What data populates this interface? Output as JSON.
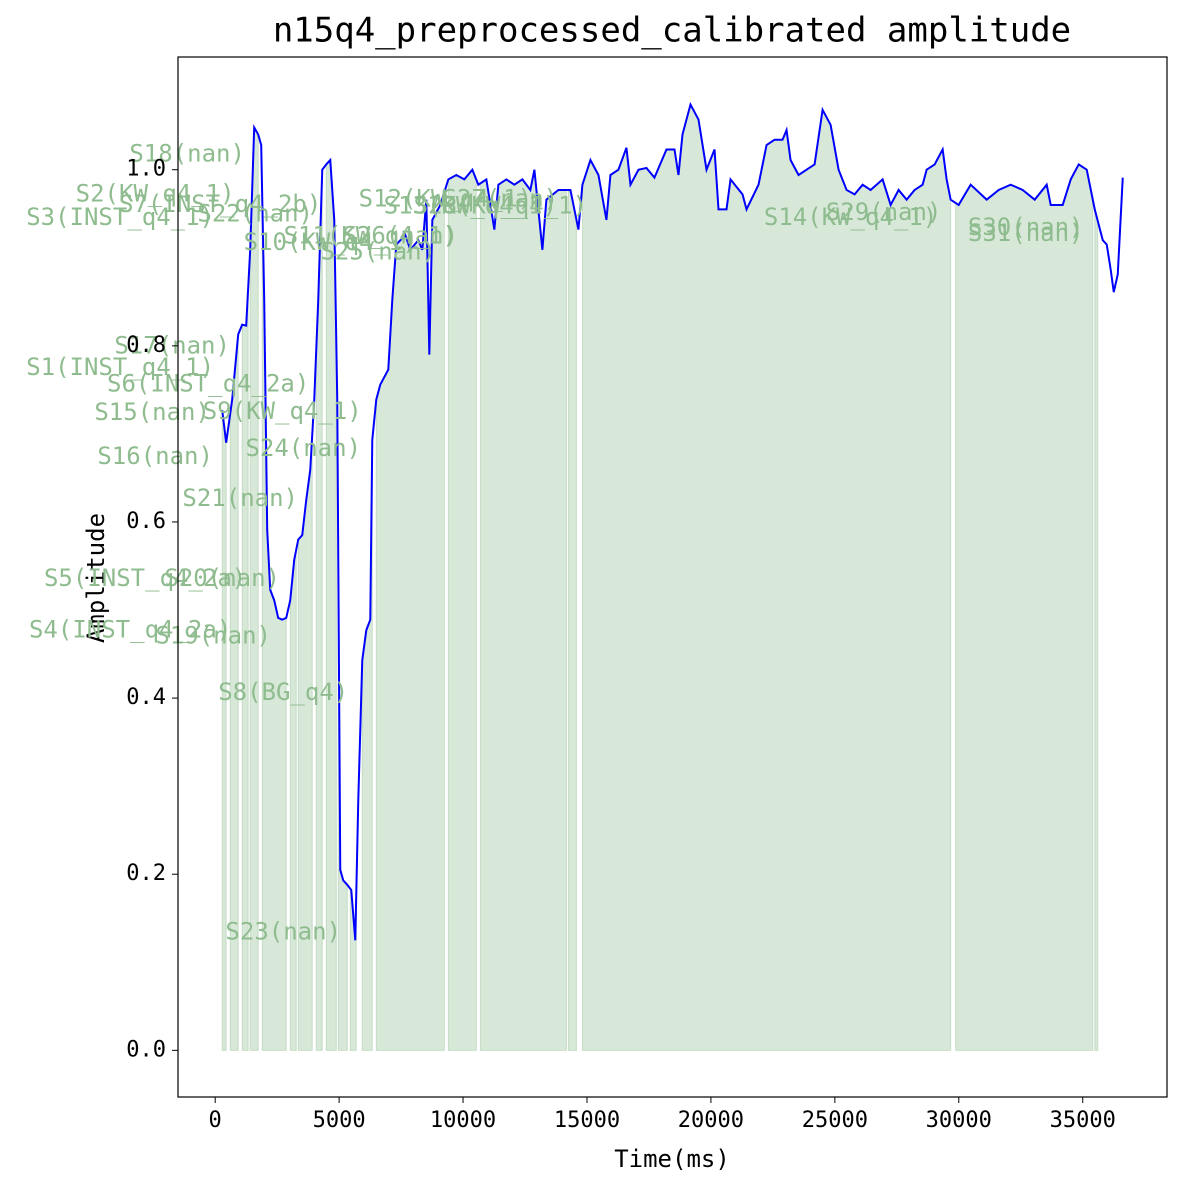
{
  "chart_data": {
    "type": "line",
    "title": "n15q4_preprocessed_calibrated amplitude",
    "x_label": "Time(ms)",
    "y_label": "Amplitude",
    "color": "blue",
    "x": [
      283,
      444,
      686,
      929,
      1090,
      1251,
      1413,
      1574,
      1736,
      1857,
      1978,
      2099,
      2220,
      2382,
      2543,
      2705,
      2866,
      3028,
      3189,
      3351,
      3512,
      3674,
      3835,
      3997,
      4158,
      4320,
      4481,
      4643,
      4804,
      4925,
      5046,
      5167,
      5329,
      5490,
      5652,
      5773,
      5934,
      6096,
      6257,
      6338,
      6499,
      6661,
      6984,
      7145,
      7307,
      7670,
      7872,
      8195,
      8357,
      8518,
      8639,
      8760,
      9083,
      9406,
      9729,
      10052,
      10375,
      10617,
      10940,
      11263,
      11425,
      11747,
      12070,
      12394,
      12716,
      12878,
      13201,
      13362,
      13847,
      14332,
      14654,
      14816,
      15139,
      15462,
      15785,
      15946,
      16269,
      16592,
      16754,
      17077,
      17399,
      17722,
      18207,
      18530,
      18691,
      18853,
      19176,
      19499,
      19822,
      20145,
      20306,
      20629,
      20791,
      21275,
      21437,
      21921,
      22244,
      22567,
      22890,
      23051,
      23213,
      23536,
      23859,
      24182,
      24505,
      24828,
      25151,
      25474,
      25796,
      26119,
      26442,
      26927,
      27250,
      27573,
      27896,
      28218,
      28541,
      28703,
      29026,
      29349,
      29510,
      29672,
      29995,
      30479,
      31125,
      31610,
      32094,
      32578,
      33063,
      33547,
      33709,
      34193,
      34516,
      34839,
      35162,
      35485,
      35808,
      35969,
      36131,
      36252,
      36413,
      36615
    ],
    "values": [
      0.727,
      0.69,
      0.739,
      0.813,
      0.824,
      0.823,
      0.909,
      1.048,
      1.04,
      1.028,
      0.852,
      0.591,
      0.523,
      0.511,
      0.491,
      0.489,
      0.491,
      0.511,
      0.557,
      0.58,
      0.585,
      0.625,
      0.659,
      0.739,
      0.852,
      1.0,
      1.006,
      1.011,
      0.943,
      0.739,
      0.205,
      0.193,
      0.188,
      0.182,
      0.125,
      0.284,
      0.443,
      0.477,
      0.489,
      0.693,
      0.739,
      0.756,
      0.773,
      0.852,
      0.915,
      0.926,
      0.909,
      0.92,
      0.909,
      0.966,
      0.79,
      0.943,
      0.96,
      0.989,
      0.994,
      0.989,
      1.0,
      0.983,
      0.989,
      0.932,
      0.983,
      0.989,
      0.983,
      0.989,
      0.977,
      1.0,
      0.909,
      0.966,
      0.977,
      0.977,
      0.932,
      0.983,
      1.011,
      0.994,
      0.943,
      0.994,
      1.0,
      1.025,
      0.983,
      1.0,
      1.002,
      0.991,
      1.023,
      1.023,
      0.994,
      1.04,
      1.074,
      1.057,
      1.0,
      1.023,
      0.955,
      0.955,
      0.989,
      0.972,
      0.955,
      0.983,
      1.028,
      1.034,
      1.034,
      1.045,
      1.011,
      0.994,
      1.0,
      1.006,
      1.068,
      1.051,
      1.0,
      0.977,
      0.972,
      0.983,
      0.977,
      0.989,
      0.96,
      0.977,
      0.966,
      0.977,
      0.983,
      1.0,
      1.006,
      1.023,
      0.989,
      0.966,
      0.96,
      0.983,
      0.966,
      0.977,
      0.983,
      0.977,
      0.966,
      0.983,
      0.96,
      0.96,
      0.989,
      1.006,
      1.0,
      0.955,
      0.92,
      0.915,
      0.886,
      0.861,
      0.881,
      0.991
    ],
    "region_color": "#8fbc8f",
    "regions": [
      [
        283,
        444
      ],
      [
        606,
        929
      ],
      [
        1090,
        1332
      ],
      [
        1413,
        1736
      ],
      [
        1897,
        2866
      ],
      [
        3028,
        3270
      ],
      [
        3351,
        3916
      ],
      [
        4077,
        4320
      ],
      [
        4481,
        4885
      ],
      [
        4966,
        5329
      ],
      [
        5450,
        5692
      ],
      [
        5934,
        6338
      ],
      [
        6499,
        9244
      ],
      [
        9406,
        10537
      ],
      [
        10698,
        14170
      ],
      [
        14251,
        14574
      ],
      [
        14816,
        29672
      ],
      [
        29874,
        35404
      ],
      [
        35485,
        35606
      ]
    ],
    "annotations": [
      {
        "text": "S18(nan)",
        "x": -1130,
        "y": 1.017
      },
      {
        "text": "S2(KW_q4_1)",
        "x": -2422,
        "y": 0.972
      },
      {
        "text": "S7(INST_q4_2b)",
        "x": 202,
        "y": 0.96
      },
      {
        "text": "S3(INST_q4_1)",
        "x": -3835,
        "y": 0.945
      },
      {
        "text": "S22(nan)",
        "x": 1615,
        "y": 0.949
      },
      {
        "text": "S10(KW_q4_1)",
        "x": 4643,
        "y": 0.917
      },
      {
        "text": "S11(KW_q4_1)",
        "x": 6257,
        "y": 0.924
      },
      {
        "text": "S26(nan)",
        "x": 7468,
        "y": 0.924
      },
      {
        "text": "S25(nan)",
        "x": 6580,
        "y": 0.906
      },
      {
        "text": "S12(KW_q4_1)",
        "x": 9285,
        "y": 0.966
      },
      {
        "text": "S13(KW_q4_1)",
        "x": 10294,
        "y": 0.958
      },
      {
        "text": "S27(nan)",
        "x": 11505,
        "y": 0.966
      },
      {
        "text": "S28(KW_q4_1)",
        "x": 11505,
        "y": 0.958
      },
      {
        "text": "S14(KW_q4_1)",
        "x": 25635,
        "y": 0.945
      },
      {
        "text": "S29(nan)",
        "x": 26967,
        "y": 0.951
      },
      {
        "text": "S30(nan)",
        "x": 32700,
        "y": 0.934
      },
      {
        "text": "S31(nan)",
        "x": 32700,
        "y": 0.927
      },
      {
        "text": "S17(nan)",
        "x": -1736,
        "y": 0.799
      },
      {
        "text": "S1(INST_q4_1)",
        "x": -3835,
        "y": 0.775
      },
      {
        "text": "S6(INST_q4_2a)",
        "x": -283,
        "y": 0.756
      },
      {
        "text": "S15(nan)",
        "x": -2543,
        "y": 0.724
      },
      {
        "text": "S9(KW_q4_1)",
        "x": 2705,
        "y": 0.725
      },
      {
        "text": "S24(nan)",
        "x": 3553,
        "y": 0.683
      },
      {
        "text": "S16(nan)",
        "x": -2422,
        "y": 0.674
      },
      {
        "text": "S21(nan)",
        "x": 1009,
        "y": 0.626
      },
      {
        "text": "S5(INST_q4_2a)",
        "x": -2826,
        "y": 0.535
      },
      {
        "text": "S20(nan)",
        "x": 283,
        "y": 0.535
      },
      {
        "text": "S4(INST_q4_2a)",
        "x": -3431,
        "y": 0.477
      },
      {
        "text": "S19(nan)",
        "x": -81,
        "y": 0.47
      },
      {
        "text": "S8(BG_q4)",
        "x": 2745,
        "y": 0.406
      },
      {
        "text": "S23(nan)",
        "x": 2745,
        "y": 0.134
      }
    ],
    "xlim": [
      -1500,
      38400
    ],
    "ylim": [
      -0.053,
      1.128
    ],
    "xticks": [
      0,
      5000,
      10000,
      15000,
      20000,
      25000,
      30000,
      35000
    ],
    "yticks": [
      {
        "value": 0,
        "label": "0.0"
      },
      {
        "value": 0.2,
        "label": "0.2"
      },
      {
        "value": 0.4,
        "label": "0.4"
      },
      {
        "value": 0.6,
        "label": "0.6"
      },
      {
        "value": 0.8,
        "label": "0.8"
      },
      {
        "value": 1.0,
        "label": "1.0"
      }
    ]
  }
}
